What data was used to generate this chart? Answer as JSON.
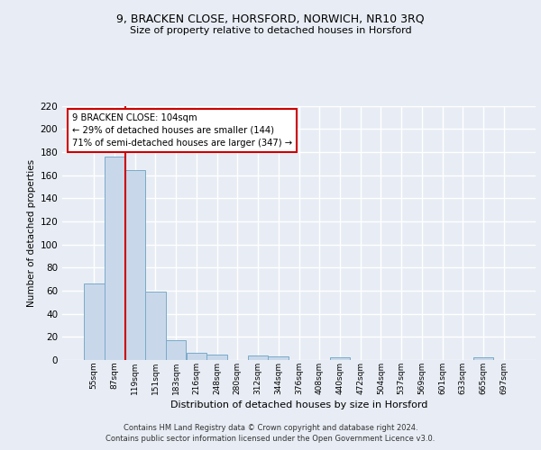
{
  "title1": "9, BRACKEN CLOSE, HORSFORD, NORWICH, NR10 3RQ",
  "title2": "Size of property relative to detached houses in Horsford",
  "xlabel": "Distribution of detached houses by size in Horsford",
  "ylabel": "Number of detached properties",
  "categories": [
    "55sqm",
    "87sqm",
    "119sqm",
    "151sqm",
    "183sqm",
    "216sqm",
    "248sqm",
    "280sqm",
    "312sqm",
    "344sqm",
    "376sqm",
    "408sqm",
    "440sqm",
    "472sqm",
    "504sqm",
    "537sqm",
    "569sqm",
    "601sqm",
    "633sqm",
    "665sqm",
    "697sqm"
  ],
  "values": [
    66,
    176,
    164,
    59,
    17,
    6,
    5,
    0,
    4,
    3,
    0,
    0,
    2,
    0,
    0,
    0,
    0,
    0,
    0,
    2,
    0
  ],
  "bar_color": "#c8d8ea",
  "bar_edge_color": "#7aaac8",
  "vline_x": 1.52,
  "vline_color": "#cc0000",
  "annotation_line1": "9 BRACKEN CLOSE: 104sqm",
  "annotation_line2": "← 29% of detached houses are smaller (144)",
  "annotation_line3": "71% of semi-detached houses are larger (347) →",
  "annotation_box_facecolor": "white",
  "annotation_box_edgecolor": "#cc0000",
  "ylim": [
    0,
    220
  ],
  "yticks": [
    0,
    20,
    40,
    60,
    80,
    100,
    120,
    140,
    160,
    180,
    200,
    220
  ],
  "bg_color": "#e8edf5",
  "plot_bg_color": "#e8edf5",
  "grid_color": "#ffffff",
  "footer1": "Contains HM Land Registry data © Crown copyright and database right 2024.",
  "footer2": "Contains public sector information licensed under the Open Government Licence v3.0."
}
